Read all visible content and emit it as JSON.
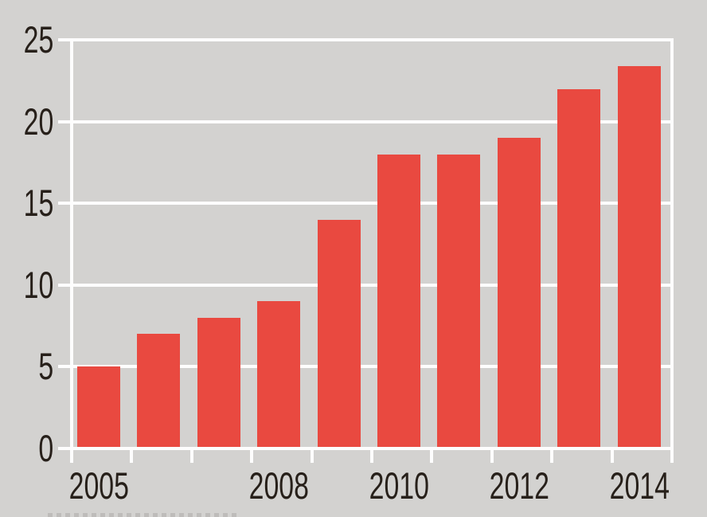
{
  "chart_data": {
    "type": "bar",
    "title": "",
    "xlabel": "",
    "ylabel": "",
    "categories": [
      "2005",
      "2006",
      "2007",
      "2008",
      "2009",
      "2010",
      "2011",
      "2012",
      "2013",
      "2014"
    ],
    "values": [
      5,
      7,
      8,
      9,
      14,
      18,
      18,
      19,
      22,
      23.4
    ],
    "x_tick_labels": [
      "2005",
      "2008",
      "2010",
      "2012",
      "2014"
    ],
    "y_ticks": [
      0,
      5,
      10,
      15,
      20,
      25
    ],
    "ylim": [
      0,
      25
    ],
    "legend": "none",
    "grid": "horizontal-white-gridlines",
    "colors": {
      "bar": "#e94940",
      "background": "#d3d2d0",
      "gridline": "#fdfdfd",
      "label_text": "#27201a"
    }
  }
}
